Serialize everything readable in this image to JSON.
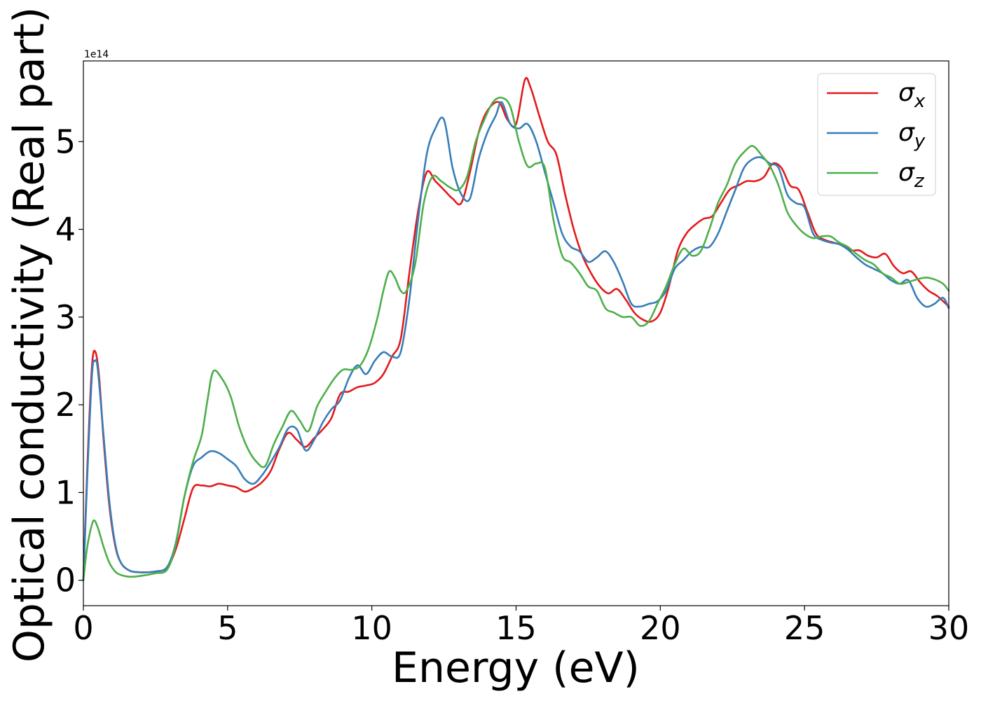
{
  "chart_data": {
    "type": "line",
    "xlabel": "Energy (eV)",
    "ylabel": "Optical conductivity (Real part)",
    "y_offset_label": "1e14",
    "xlim": [
      0,
      30
    ],
    "ylim": [
      -0.29,
      5.92
    ],
    "x_ticks": [
      0,
      5,
      10,
      15,
      20,
      25,
      30
    ],
    "x_tick_labels": [
      "0",
      "5",
      "10",
      "15",
      "20",
      "25",
      "30"
    ],
    "y_ticks": [
      0,
      1,
      2,
      3,
      4,
      5
    ],
    "y_tick_labels": [
      "0",
      "1",
      "2",
      "3",
      "4",
      "5"
    ],
    "grid": false,
    "legend_position": "top-right",
    "series": [
      {
        "name": "σx",
        "symbol": "σ",
        "subscript": "x",
        "color": "#e41a1c",
        "x": [
          0,
          0.15,
          0.3,
          0.42,
          0.55,
          0.7,
          0.9,
          1.1,
          1.3,
          1.6,
          2.0,
          2.5,
          2.9,
          3.2,
          3.5,
          3.8,
          4.1,
          4.4,
          4.7,
          5.0,
          5.3,
          5.6,
          5.9,
          6.2,
          6.5,
          6.8,
          7.1,
          7.4,
          7.7,
          8.0,
          8.3,
          8.6,
          8.9,
          9.2,
          9.5,
          9.8,
          10.1,
          10.4,
          10.7,
          11.0,
          11.3,
          11.6,
          11.9,
          12.2,
          12.5,
          12.8,
          13.1,
          13.4,
          13.7,
          14.0,
          14.4,
          14.7,
          15.0,
          15.3,
          15.5,
          15.8,
          16.1,
          16.4,
          16.7,
          17.0,
          17.3,
          17.6,
          17.9,
          18.2,
          18.5,
          18.8,
          19.1,
          19.4,
          19.7,
          20.0,
          20.3,
          20.6,
          20.9,
          21.2,
          21.5,
          21.8,
          22.1,
          22.4,
          22.7,
          23.0,
          23.3,
          23.6,
          23.9,
          24.2,
          24.5,
          24.8,
          25.1,
          25.4,
          25.7,
          26.0,
          26.3,
          26.6,
          26.9,
          27.2,
          27.5,
          27.8,
          28.1,
          28.4,
          28.7,
          29.0,
          29.3,
          29.6,
          30.0
        ],
        "values": [
          0.0,
          1.4,
          2.45,
          2.6,
          2.3,
          1.6,
          0.85,
          0.4,
          0.2,
          0.11,
          0.09,
          0.1,
          0.14,
          0.35,
          0.7,
          1.05,
          1.08,
          1.07,
          1.1,
          1.08,
          1.06,
          1.01,
          1.05,
          1.12,
          1.25,
          1.5,
          1.68,
          1.6,
          1.52,
          1.62,
          1.72,
          1.85,
          2.12,
          2.15,
          2.2,
          2.22,
          2.25,
          2.35,
          2.55,
          2.75,
          3.5,
          4.2,
          4.65,
          4.55,
          4.45,
          4.35,
          4.3,
          4.65,
          5.1,
          5.35,
          5.45,
          5.25,
          5.2,
          5.7,
          5.62,
          5.3,
          5.0,
          4.85,
          4.4,
          4.0,
          3.7,
          3.5,
          3.35,
          3.27,
          3.32,
          3.2,
          3.05,
          2.97,
          2.95,
          3.05,
          3.35,
          3.75,
          3.95,
          4.05,
          4.12,
          4.15,
          4.3,
          4.45,
          4.5,
          4.55,
          4.55,
          4.6,
          4.75,
          4.7,
          4.5,
          4.45,
          4.2,
          3.95,
          3.88,
          3.85,
          3.82,
          3.76,
          3.76,
          3.7,
          3.68,
          3.72,
          3.58,
          3.5,
          3.52,
          3.4,
          3.3,
          3.24,
          3.12
        ]
      },
      {
        "name": "σy",
        "symbol": "σ",
        "subscript": "y",
        "color": "#377eb8",
        "x": [
          0,
          0.15,
          0.3,
          0.4,
          0.5,
          0.7,
          0.9,
          1.1,
          1.3,
          1.6,
          2.0,
          2.5,
          2.9,
          3.2,
          3.5,
          3.8,
          4.1,
          4.4,
          4.7,
          5.0,
          5.3,
          5.6,
          5.9,
          6.2,
          6.5,
          6.8,
          7.1,
          7.4,
          7.7,
          8.0,
          8.3,
          8.6,
          8.9,
          9.2,
          9.5,
          9.8,
          10.1,
          10.4,
          10.7,
          11.0,
          11.3,
          11.6,
          11.9,
          12.2,
          12.5,
          12.8,
          13.1,
          13.4,
          13.7,
          14.0,
          14.3,
          14.5,
          14.8,
          15.1,
          15.4,
          15.7,
          16.0,
          16.3,
          16.6,
          16.9,
          17.2,
          17.5,
          17.8,
          18.1,
          18.4,
          18.7,
          19.0,
          19.3,
          19.6,
          19.9,
          20.2,
          20.5,
          20.8,
          21.1,
          21.4,
          21.7,
          22.0,
          22.3,
          22.6,
          22.9,
          23.2,
          23.5,
          23.8,
          24.1,
          24.4,
          24.7,
          25.0,
          25.3,
          25.6,
          25.9,
          26.2,
          26.5,
          26.8,
          27.1,
          27.4,
          27.7,
          28.0,
          28.3,
          28.6,
          28.9,
          29.2,
          29.5,
          29.8,
          30.0
        ],
        "values": [
          0.0,
          1.3,
          2.35,
          2.5,
          2.4,
          1.65,
          0.9,
          0.42,
          0.2,
          0.11,
          0.09,
          0.1,
          0.15,
          0.42,
          0.95,
          1.3,
          1.4,
          1.47,
          1.45,
          1.38,
          1.3,
          1.15,
          1.1,
          1.2,
          1.35,
          1.52,
          1.73,
          1.72,
          1.48,
          1.6,
          1.8,
          1.95,
          2.05,
          2.3,
          2.45,
          2.35,
          2.5,
          2.6,
          2.55,
          2.6,
          3.2,
          4.1,
          4.85,
          5.15,
          5.25,
          4.7,
          4.4,
          4.35,
          4.8,
          5.1,
          5.3,
          5.45,
          5.2,
          5.15,
          5.2,
          5.0,
          4.65,
          4.3,
          3.95,
          3.8,
          3.75,
          3.63,
          3.68,
          3.75,
          3.62,
          3.4,
          3.15,
          3.12,
          3.15,
          3.18,
          3.3,
          3.55,
          3.65,
          3.75,
          3.8,
          3.8,
          3.95,
          4.2,
          4.45,
          4.7,
          4.8,
          4.82,
          4.75,
          4.7,
          4.4,
          4.3,
          4.25,
          3.95,
          3.88,
          3.85,
          3.83,
          3.77,
          3.68,
          3.6,
          3.55,
          3.5,
          3.42,
          3.38,
          3.42,
          3.22,
          3.12,
          3.15,
          3.22,
          3.1
        ]
      },
      {
        "name": "σz",
        "symbol": "σ",
        "subscript": "z",
        "color": "#4daf4a",
        "x": [
          0,
          0.1,
          0.2,
          0.35,
          0.5,
          0.7,
          0.9,
          1.1,
          1.3,
          1.6,
          2.0,
          2.5,
          2.9,
          3.2,
          3.5,
          3.8,
          4.1,
          4.3,
          4.5,
          4.8,
          5.1,
          5.4,
          5.7,
          6.0,
          6.3,
          6.6,
          6.9,
          7.2,
          7.5,
          7.8,
          8.1,
          8.4,
          8.7,
          9.0,
          9.3,
          9.6,
          9.9,
          10.2,
          10.4,
          10.6,
          10.8,
          11.0,
          11.2,
          11.5,
          11.8,
          12.1,
          12.4,
          12.7,
          13.0,
          13.3,
          13.6,
          13.9,
          14.2,
          14.5,
          14.8,
          15.1,
          15.4,
          15.7,
          16.0,
          16.3,
          16.6,
          16.9,
          17.2,
          17.5,
          17.8,
          18.1,
          18.4,
          18.7,
          19.0,
          19.3,
          19.6,
          19.9,
          20.2,
          20.5,
          20.8,
          21.1,
          21.4,
          21.7,
          22.0,
          22.3,
          22.6,
          22.9,
          23.2,
          23.5,
          23.8,
          24.1,
          24.4,
          24.7,
          25.0,
          25.3,
          25.6,
          25.9,
          26.2,
          26.5,
          26.8,
          27.1,
          27.4,
          27.7,
          28.0,
          28.3,
          28.6,
          28.9,
          29.2,
          29.5,
          29.8,
          30.0
        ],
        "values": [
          0.0,
          0.3,
          0.5,
          0.68,
          0.6,
          0.38,
          0.2,
          0.1,
          0.06,
          0.04,
          0.05,
          0.08,
          0.12,
          0.4,
          0.95,
          1.35,
          1.65,
          2.05,
          2.38,
          2.3,
          2.1,
          1.75,
          1.5,
          1.35,
          1.3,
          1.55,
          1.75,
          1.93,
          1.82,
          1.7,
          1.98,
          2.15,
          2.3,
          2.4,
          2.4,
          2.45,
          2.65,
          3.0,
          3.3,
          3.52,
          3.45,
          3.3,
          3.3,
          3.6,
          4.3,
          4.6,
          4.55,
          4.48,
          4.45,
          4.6,
          5.0,
          5.25,
          5.45,
          5.5,
          5.4,
          5.0,
          4.72,
          4.75,
          4.7,
          4.1,
          3.7,
          3.62,
          3.5,
          3.35,
          3.3,
          3.1,
          3.05,
          3.0,
          3.0,
          2.9,
          2.95,
          3.15,
          3.35,
          3.6,
          3.78,
          3.7,
          3.75,
          4.0,
          4.3,
          4.5,
          4.75,
          4.88,
          4.95,
          4.85,
          4.72,
          4.5,
          4.2,
          4.05,
          3.95,
          3.9,
          3.92,
          3.92,
          3.85,
          3.8,
          3.72,
          3.65,
          3.6,
          3.5,
          3.45,
          3.38,
          3.4,
          3.43,
          3.45,
          3.43,
          3.38,
          3.3
        ]
      }
    ]
  }
}
